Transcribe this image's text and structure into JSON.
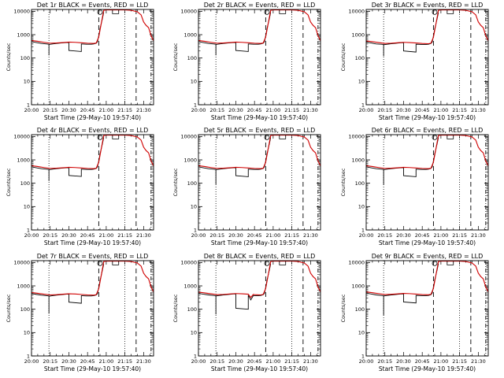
{
  "figure": {
    "background": "#ffffff",
    "axis_color": "#000000",
    "events_color": "#000000",
    "lld_color": "#d00000"
  },
  "chart_data": {
    "type": "line",
    "grid_layout": "3x3",
    "xlabel": "Start Time (29-May-10 19:57:40)",
    "ylabel": "Counts/sec",
    "x_tick_labels": [
      "20:00",
      "20:15",
      "20:30",
      "20:45",
      "21:00",
      "21:15",
      "21:30"
    ],
    "x_tick_minutes": [
      0,
      15,
      30,
      45,
      60,
      75,
      90
    ],
    "xlim_minutes": [
      0,
      98
    ],
    "yscale": "log",
    "ylim": [
      1,
      12000
    ],
    "y_tick_labels": [
      "1",
      "10",
      "100",
      "1000",
      "10000"
    ],
    "y_tick_values": [
      1,
      10,
      100,
      1000,
      10000
    ],
    "x_units": "minutes after 20:00",
    "markers": {
      "dotted_minutes": [
        14,
        75
      ],
      "dashed_minutes": [
        54,
        84
      ],
      "dashdot_minutes": [
        96
      ],
      "circle": {
        "x": 55,
        "y": 10000
      },
      "bracket": {
        "x": [
          65,
          70
        ],
        "y": 10000
      }
    },
    "panels": [
      {
        "title": "Det 1r BLACK = Events, RED = LLD",
        "events": {
          "x": [
            0,
            4,
            8,
            12,
            14,
            14.01,
            14.02,
            17,
            20,
            24,
            28,
            30,
            30.01,
            40,
            40.01,
            44,
            48,
            50,
            52,
            53,
            54,
            55,
            56,
            57,
            58
          ],
          "y": [
            500,
            460,
            420,
            400,
            390,
            130,
            380,
            400,
            420,
            440,
            460,
            460,
            210,
            190,
            400,
            390,
            390,
            400,
            430,
            500,
            900,
            1800,
            3000,
            5000,
            9000
          ]
        },
        "lld": {
          "x": [
            0,
            5,
            10,
            15,
            20,
            25,
            30,
            35,
            40,
            45,
            50,
            52,
            54,
            56,
            58,
            60,
            62,
            64,
            70,
            75,
            80,
            85,
            88,
            90,
            92,
            94,
            96,
            98
          ],
          "y": [
            560,
            520,
            470,
            430,
            440,
            460,
            480,
            470,
            450,
            430,
            420,
            440,
            800,
            3000,
            11000,
            11500,
            11500,
            11500,
            11500,
            11500,
            11000,
            9500,
            7000,
            3500,
            2500,
            2000,
            900,
            550
          ]
        }
      },
      {
        "title": "Det 2r BLACK = Events, RED = LLD",
        "events": {
          "x": [
            0,
            4,
            8,
            12,
            14,
            14.01,
            14.02,
            17,
            20,
            24,
            28,
            30,
            30.01,
            40,
            40.01,
            44,
            48,
            50,
            52,
            53,
            54,
            55,
            56,
            57,
            58
          ],
          "y": [
            500,
            460,
            420,
            400,
            390,
            130,
            380,
            400,
            420,
            440,
            460,
            460,
            210,
            190,
            400,
            390,
            390,
            400,
            430,
            500,
            900,
            1800,
            3000,
            5000,
            9000
          ]
        },
        "lld": {
          "x": [
            0,
            5,
            10,
            15,
            20,
            25,
            30,
            35,
            40,
            45,
            50,
            52,
            54,
            56,
            58,
            60,
            62,
            64,
            70,
            75,
            80,
            85,
            88,
            90,
            92,
            94,
            96,
            98
          ],
          "y": [
            560,
            520,
            470,
            430,
            440,
            460,
            480,
            470,
            450,
            430,
            420,
            440,
            800,
            3000,
            11000,
            11500,
            11500,
            11500,
            11500,
            11500,
            11000,
            9500,
            7000,
            3500,
            2500,
            2000,
            900,
            550
          ]
        }
      },
      {
        "title": "Det 3r BLACK = Events, RED = LLD",
        "events": {
          "x": [
            0,
            4,
            8,
            12,
            14,
            14.01,
            14.02,
            17,
            20,
            24,
            28,
            30,
            30.01,
            40,
            40.01,
            44,
            48,
            50,
            52,
            53,
            54,
            55,
            56,
            57,
            58
          ],
          "y": [
            480,
            440,
            400,
            390,
            380,
            120,
            370,
            390,
            410,
            430,
            450,
            450,
            200,
            180,
            390,
            380,
            380,
            390,
            420,
            480,
            880,
            1750,
            2900,
            4900,
            8800
          ]
        },
        "lld": {
          "x": [
            0,
            5,
            10,
            15,
            20,
            25,
            30,
            35,
            40,
            45,
            50,
            52,
            54,
            56,
            58,
            60,
            62,
            64,
            70,
            75,
            80,
            85,
            88,
            90,
            92,
            94,
            96,
            98
          ],
          "y": [
            540,
            500,
            460,
            420,
            430,
            450,
            470,
            460,
            440,
            420,
            410,
            430,
            780,
            2900,
            11000,
            11500,
            11500,
            11500,
            11500,
            11500,
            11000,
            9500,
            7000,
            3500,
            2500,
            2000,
            900,
            550
          ]
        }
      },
      {
        "title": "Det 4r BLACK = Events, RED = LLD",
        "events": {
          "x": [
            0,
            4,
            8,
            12,
            14,
            14.01,
            14.02,
            17,
            20,
            24,
            28,
            30,
            30.01,
            40,
            40.01,
            44,
            48,
            50,
            52,
            53,
            54,
            55,
            56,
            57,
            58
          ],
          "y": [
            500,
            460,
            420,
            400,
            390,
            125,
            380,
            400,
            420,
            440,
            460,
            460,
            215,
            195,
            400,
            390,
            390,
            400,
            430,
            500,
            900,
            1800,
            3000,
            5000,
            9000
          ]
        },
        "lld": {
          "x": [
            0,
            5,
            10,
            15,
            20,
            25,
            30,
            35,
            40,
            45,
            50,
            52,
            54,
            56,
            58,
            60,
            62,
            64,
            70,
            75,
            80,
            85,
            88,
            90,
            92,
            94,
            96,
            98
          ],
          "y": [
            560,
            520,
            470,
            430,
            440,
            460,
            480,
            470,
            450,
            430,
            420,
            440,
            800,
            3000,
            11000,
            11500,
            11500,
            11500,
            11500,
            11500,
            11000,
            9500,
            7000,
            3500,
            2500,
            2000,
            900,
            550
          ]
        }
      },
      {
        "title": "Det 5r BLACK = Events, RED = LLD",
        "events": {
          "x": [
            0,
            4,
            8,
            12,
            14,
            14.01,
            14.02,
            17,
            20,
            24,
            28,
            30,
            30.01,
            40,
            40.01,
            44,
            48,
            50,
            52,
            53,
            54,
            55,
            56,
            57,
            58
          ],
          "y": [
            500,
            460,
            420,
            400,
            390,
            90,
            380,
            400,
            420,
            440,
            460,
            460,
            210,
            190,
            400,
            390,
            390,
            400,
            430,
            500,
            900,
            1800,
            3000,
            5000,
            9000
          ]
        },
        "lld": {
          "x": [
            0,
            5,
            10,
            15,
            20,
            25,
            30,
            35,
            40,
            45,
            50,
            52,
            54,
            56,
            58,
            60,
            62,
            64,
            70,
            75,
            80,
            85,
            88,
            90,
            92,
            94,
            96,
            98
          ],
          "y": [
            560,
            520,
            470,
            430,
            440,
            460,
            480,
            470,
            450,
            430,
            420,
            440,
            800,
            3000,
            11000,
            11500,
            11500,
            11500,
            11500,
            11500,
            11000,
            9500,
            7000,
            3500,
            2500,
            2000,
            900,
            550
          ]
        }
      },
      {
        "title": "Det 6r BLACK = Events, RED = LLD",
        "events": {
          "x": [
            0,
            4,
            8,
            12,
            14,
            14.01,
            14.02,
            17,
            20,
            24,
            28,
            30,
            30.01,
            40,
            40.01,
            44,
            48,
            50,
            52,
            53,
            54,
            55,
            56,
            57,
            58
          ],
          "y": [
            500,
            460,
            420,
            400,
            390,
            85,
            380,
            400,
            420,
            440,
            460,
            460,
            210,
            190,
            400,
            390,
            390,
            400,
            430,
            500,
            900,
            1800,
            3000,
            5000,
            9000
          ]
        },
        "lld": {
          "x": [
            0,
            5,
            10,
            15,
            20,
            25,
            30,
            35,
            40,
            45,
            50,
            52,
            54,
            56,
            58,
            60,
            62,
            64,
            70,
            75,
            80,
            85,
            88,
            90,
            92,
            94,
            96,
            98
          ],
          "y": [
            560,
            520,
            470,
            430,
            440,
            460,
            480,
            470,
            450,
            430,
            420,
            440,
            800,
            3000,
            11000,
            11500,
            11500,
            11500,
            11500,
            11500,
            11000,
            9500,
            7000,
            3500,
            2500,
            2000,
            900,
            550
          ]
        }
      },
      {
        "title": "Det 7r BLACK = Events, RED = LLD",
        "events": {
          "x": [
            0,
            4,
            8,
            12,
            14,
            14.01,
            14.02,
            17,
            20,
            24,
            28,
            30,
            30.01,
            40,
            40.01,
            44,
            48,
            50,
            52,
            53,
            54,
            55,
            56,
            57,
            58
          ],
          "y": [
            470,
            430,
            400,
            380,
            370,
            65,
            360,
            380,
            400,
            420,
            440,
            440,
            200,
            180,
            380,
            370,
            370,
            380,
            410,
            470,
            860,
            1700,
            2800,
            4800,
            8600
          ]
        },
        "lld": {
          "x": [
            0,
            5,
            10,
            15,
            20,
            25,
            30,
            35,
            40,
            45,
            50,
            52,
            54,
            56,
            58,
            60,
            62,
            64,
            70,
            75,
            80,
            85,
            88,
            90,
            92,
            94,
            96,
            98
          ],
          "y": [
            520,
            480,
            440,
            410,
            420,
            440,
            460,
            450,
            430,
            410,
            400,
            420,
            760,
            2800,
            11000,
            11500,
            11500,
            11500,
            11500,
            11500,
            11000,
            9500,
            7000,
            3500,
            2500,
            2000,
            900,
            550
          ]
        }
      },
      {
        "title": "Det 8r BLACK = Events, RED = LLD",
        "events": {
          "x": [
            0,
            4,
            8,
            12,
            14,
            14.01,
            14.02,
            17,
            20,
            24,
            28,
            30,
            30.01,
            40,
            40.01,
            42,
            44,
            46,
            48,
            50,
            52,
            53,
            54,
            55,
            56,
            57,
            58
          ],
          "y": [
            480,
            440,
            410,
            390,
            380,
            60,
            370,
            390,
            410,
            430,
            450,
            450,
            110,
            100,
            400,
            250,
            380,
            380,
            380,
            390,
            420,
            480,
            880,
            1750,
            2900,
            4900,
            8800
          ]
        },
        "lld": {
          "x": [
            0,
            5,
            10,
            15,
            20,
            25,
            30,
            35,
            40,
            42,
            44,
            45,
            50,
            52,
            54,
            56,
            58,
            60,
            62,
            64,
            70,
            75,
            80,
            85,
            88,
            90,
            92,
            94,
            96,
            98
          ],
          "y": [
            540,
            500,
            460,
            420,
            430,
            450,
            470,
            460,
            440,
            320,
            430,
            420,
            410,
            430,
            780,
            2900,
            11000,
            11500,
            11500,
            11500,
            11500,
            11500,
            11000,
            9500,
            7000,
            3500,
            2500,
            2000,
            900,
            550
          ]
        }
      },
      {
        "title": "Det 9r BLACK = Events, RED = LLD",
        "events": {
          "x": [
            0,
            4,
            8,
            12,
            14,
            14.01,
            14.02,
            17,
            20,
            24,
            28,
            30,
            30.01,
            40,
            40.01,
            44,
            48,
            50,
            52,
            53,
            54,
            55,
            56,
            57,
            58
          ],
          "y": [
            490,
            450,
            410,
            390,
            380,
            55,
            370,
            390,
            410,
            430,
            450,
            450,
            205,
            185,
            390,
            380,
            380,
            390,
            420,
            490,
            890,
            1780,
            2950,
            4950,
            8900
          ]
        },
        "lld": {
          "x": [
            0,
            5,
            10,
            15,
            20,
            25,
            30,
            35,
            40,
            45,
            50,
            52,
            54,
            56,
            58,
            60,
            62,
            64,
            70,
            75,
            80,
            85,
            88,
            90,
            92,
            94,
            96,
            98
          ],
          "y": [
            550,
            510,
            465,
            425,
            435,
            455,
            475,
            465,
            445,
            425,
            415,
            435,
            790,
            2950,
            11000,
            11500,
            11500,
            11500,
            11500,
            11500,
            11000,
            9500,
            7000,
            3500,
            2500,
            2000,
            900,
            550
          ]
        }
      }
    ]
  }
}
